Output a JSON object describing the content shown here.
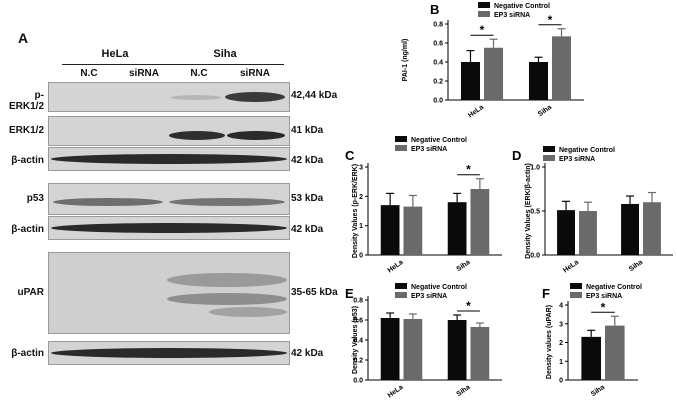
{
  "western_blot": {
    "panel_letter": "A",
    "cell_lines": [
      "HeLa",
      "Siha"
    ],
    "lanes": [
      "N.C",
      "siRNA",
      "N.C",
      "siRNA"
    ],
    "bands": [
      {
        "name": "p-ERK1/2",
        "kda": "42,44 kDa"
      },
      {
        "name": "ERK1/2",
        "kda": "41 kDa"
      },
      {
        "name": "β-actin",
        "kda": "42 kDa"
      },
      {
        "name": "p53",
        "kda": "53 kDa"
      },
      {
        "name": "β-actin",
        "kda": "42 kDa"
      },
      {
        "name": "uPAR",
        "kda": "35-65 kDa"
      },
      {
        "name": "β-actin",
        "kda": "42 kDa"
      }
    ]
  },
  "chart_data": [
    {
      "panel": "B",
      "type": "bar",
      "categories": [
        "HeLa",
        "Siha"
      ],
      "series": [
        {
          "name": "Negative Control",
          "values": [
            0.4,
            0.4
          ],
          "errors": [
            0.12,
            0.05
          ]
        },
        {
          "name": "EP3 siRNA",
          "values": [
            0.55,
            0.67
          ],
          "errors": [
            0.09,
            0.08
          ]
        }
      ],
      "ylabel": "PAI-1 (ng/ml)",
      "ylim": [
        0,
        0.8
      ],
      "yticks": [
        "0.0",
        "0.2",
        "0.4",
        "0.6",
        "0.8"
      ],
      "significance": [
        "*",
        "*"
      ],
      "legend": "top"
    },
    {
      "panel": "C",
      "type": "bar",
      "categories": [
        "HeLa",
        "Siha"
      ],
      "series": [
        {
          "name": "Negative Control",
          "values": [
            1.7,
            1.8
          ],
          "errors": [
            0.4,
            0.3
          ]
        },
        {
          "name": "EP3 siRNA",
          "values": [
            1.65,
            2.25
          ],
          "errors": [
            0.38,
            0.35
          ]
        }
      ],
      "ylabel": "Density Values (p-ERK/ERK)",
      "ylim": [
        0,
        3
      ],
      "yticks": [
        "0",
        "1",
        "2",
        "3"
      ],
      "significance": [
        "",
        "*"
      ],
      "legend": "top"
    },
    {
      "panel": "D",
      "type": "bar",
      "categories": [
        "HeLa",
        "Siha"
      ],
      "series": [
        {
          "name": "Negative Control",
          "values": [
            0.51,
            0.58
          ],
          "errors": [
            0.1,
            0.09
          ]
        },
        {
          "name": "EP3 siRNA",
          "values": [
            0.5,
            0.6
          ],
          "errors": [
            0.1,
            0.11
          ]
        }
      ],
      "ylabel": "Density Values (ERK/β-actin)",
      "ylim": [
        0,
        1.0
      ],
      "yticks": [
        "0.0",
        "0.5",
        "1.0"
      ],
      "significance": [
        "",
        ""
      ],
      "legend": "top"
    },
    {
      "panel": "E",
      "type": "bar",
      "categories": [
        "HeLa",
        "Siha"
      ],
      "series": [
        {
          "name": "Negative Control",
          "values": [
            0.62,
            0.6
          ],
          "errors": [
            0.05,
            0.05
          ]
        },
        {
          "name": "EP3 siRNA",
          "values": [
            0.61,
            0.53
          ],
          "errors": [
            0.05,
            0.04
          ]
        }
      ],
      "ylabel": "Density Values (p53)",
      "ylim": [
        0,
        0.8
      ],
      "yticks": [
        "0.0",
        "0.2",
        "0.4",
        "0.6",
        "0.8"
      ],
      "significance": [
        "",
        "*"
      ],
      "legend": "top"
    },
    {
      "panel": "F",
      "type": "bar",
      "categories": [
        "Siha"
      ],
      "series": [
        {
          "name": "Negative Control",
          "values": [
            2.3
          ],
          "errors": [
            0.35
          ]
        },
        {
          "name": "EP3 siRNA",
          "values": [
            2.9
          ],
          "errors": [
            0.5
          ]
        }
      ],
      "ylabel": "Density values (uPAR)",
      "ylim": [
        0,
        4
      ],
      "yticks": [
        "0",
        "1",
        "2",
        "3",
        "4"
      ],
      "significance": [
        "*"
      ],
      "legend": "top"
    }
  ],
  "colors": {
    "negative_control": "#0a0a0a",
    "ep3_sirna": "#6a6a6a"
  }
}
